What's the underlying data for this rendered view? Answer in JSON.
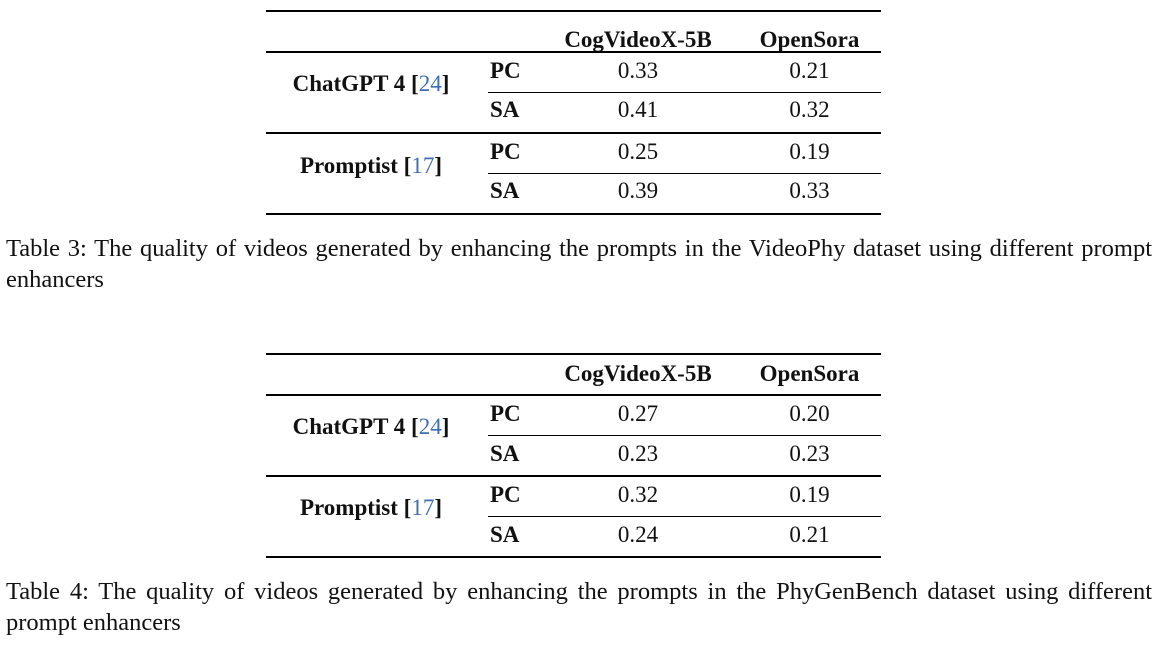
{
  "tables": [
    {
      "columns": [
        "CogVideoX-5B",
        "OpenSora"
      ],
      "groups": [
        {
          "name": "ChatGPT 4",
          "ref": "24",
          "rows": [
            {
              "metric": "PC",
              "values": [
                "0.33",
                "0.21"
              ]
            },
            {
              "metric": "SA",
              "values": [
                "0.41",
                "0.32"
              ]
            }
          ]
        },
        {
          "name": "Promptist",
          "ref": "17",
          "rows": [
            {
              "metric": "PC",
              "values": [
                "0.25",
                "0.19"
              ]
            },
            {
              "metric": "SA",
              "values": [
                "0.39",
                "0.33"
              ]
            }
          ]
        }
      ],
      "caption": "Table 3: The quality of videos generated by enhancing the prompts in the VideoPhy dataset using different prompt enhancers"
    },
    {
      "columns": [
        "CogVideoX-5B",
        "OpenSora"
      ],
      "groups": [
        {
          "name": "ChatGPT 4",
          "ref": "24",
          "rows": [
            {
              "metric": "PC",
              "values": [
                "0.27",
                "0.20"
              ]
            },
            {
              "metric": "SA",
              "values": [
                "0.23",
                "0.23"
              ]
            }
          ]
        },
        {
          "name": "Promptist",
          "ref": "17",
          "rows": [
            {
              "metric": "PC",
              "values": [
                "0.32",
                "0.19"
              ]
            },
            {
              "metric": "SA",
              "values": [
                "0.24",
                "0.21"
              ]
            }
          ]
        }
      ],
      "caption": "Table 4: The quality of videos generated by enhancing the prompts in the PhyGenBench dataset using different prompt enhancers"
    }
  ]
}
